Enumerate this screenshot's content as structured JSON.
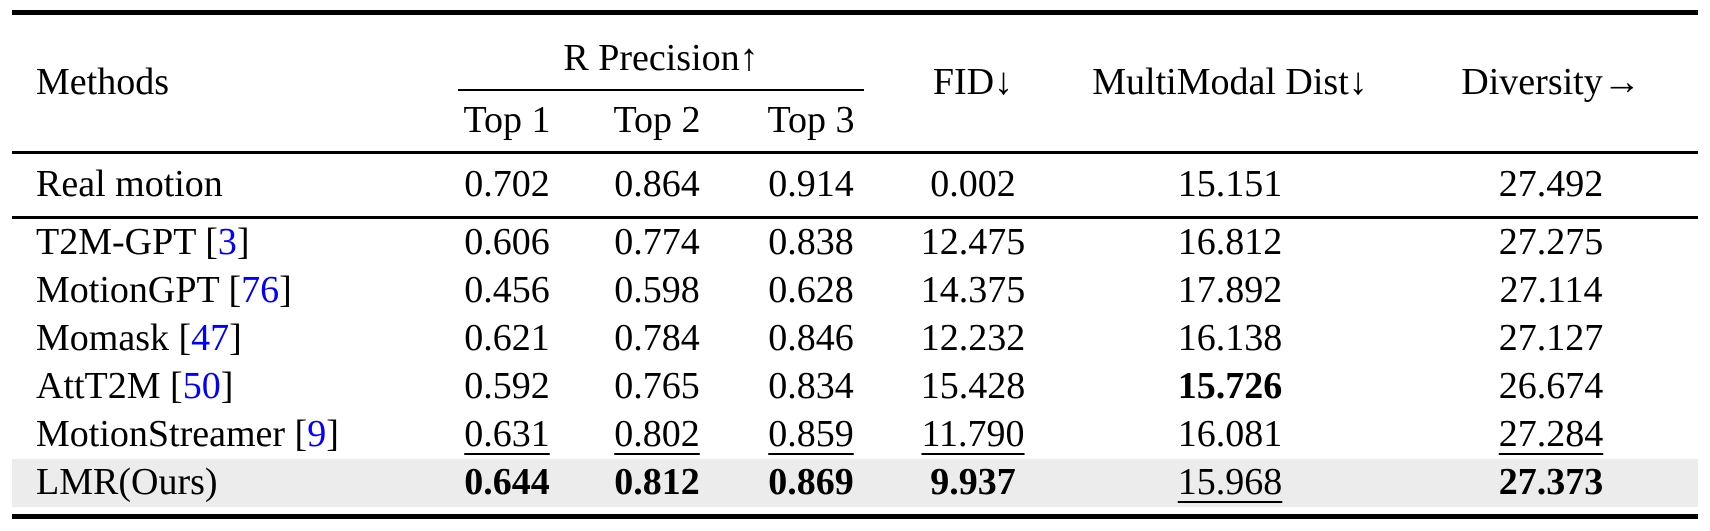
{
  "colors": {
    "citation": "#0000ff",
    "row_highlight": "#ececec",
    "rule": "#000000"
  },
  "table": {
    "header": {
      "methods": "Methods",
      "r_precision": "R Precision↑",
      "top1": "Top 1",
      "top2": "Top 2",
      "top3": "Top 3",
      "fid": "FID↓",
      "multimodal_dist": "MultiModal Dist↓",
      "diversity": "Diversity→"
    },
    "real_row": {
      "method": {
        "prefix": "Real motion",
        "cite": "",
        "suffix": ""
      },
      "values": [
        {
          "text": "0.702",
          "style": "normal"
        },
        {
          "text": "0.864",
          "style": "normal"
        },
        {
          "text": "0.914",
          "style": "normal"
        },
        {
          "text": "0.002",
          "style": "normal"
        },
        {
          "text": "15.151",
          "style": "normal"
        },
        {
          "text": "27.492",
          "style": "normal"
        }
      ]
    },
    "rows": [
      {
        "method": {
          "prefix": "T2M-GPT [",
          "cite": "3",
          "suffix": "]"
        },
        "values": [
          {
            "text": "0.606",
            "style": "normal"
          },
          {
            "text": "0.774",
            "style": "normal"
          },
          {
            "text": "0.838",
            "style": "normal"
          },
          {
            "text": "12.475",
            "style": "normal"
          },
          {
            "text": "16.812",
            "style": "normal"
          },
          {
            "text": "27.275",
            "style": "normal"
          }
        ]
      },
      {
        "method": {
          "prefix": "MotionGPT [",
          "cite": "76",
          "suffix": "]"
        },
        "values": [
          {
            "text": "0.456",
            "style": "normal"
          },
          {
            "text": "0.598",
            "style": "normal"
          },
          {
            "text": "0.628",
            "style": "normal"
          },
          {
            "text": "14.375",
            "style": "normal"
          },
          {
            "text": "17.892",
            "style": "normal"
          },
          {
            "text": "27.114",
            "style": "normal"
          }
        ]
      },
      {
        "method": {
          "prefix": "Momask [",
          "cite": "47",
          "suffix": "]"
        },
        "values": [
          {
            "text": "0.621",
            "style": "normal"
          },
          {
            "text": "0.784",
            "style": "normal"
          },
          {
            "text": "0.846",
            "style": "normal"
          },
          {
            "text": "12.232",
            "style": "normal"
          },
          {
            "text": "16.138",
            "style": "normal"
          },
          {
            "text": "27.127",
            "style": "normal"
          }
        ]
      },
      {
        "method": {
          "prefix": "AttT2M [",
          "cite": "50",
          "suffix": "]"
        },
        "values": [
          {
            "text": "0.592",
            "style": "normal"
          },
          {
            "text": "0.765",
            "style": "normal"
          },
          {
            "text": "0.834",
            "style": "normal"
          },
          {
            "text": "15.428",
            "style": "normal"
          },
          {
            "text": "15.726",
            "style": "bold"
          },
          {
            "text": "26.674",
            "style": "normal"
          }
        ]
      },
      {
        "method": {
          "prefix": "MotionStreamer [",
          "cite": "9",
          "suffix": "]"
        },
        "values": [
          {
            "text": "0.631",
            "style": "underline"
          },
          {
            "text": "0.802",
            "style": "underline"
          },
          {
            "text": "0.859",
            "style": "underline"
          },
          {
            "text": "11.790",
            "style": "underline"
          },
          {
            "text": "16.081",
            "style": "normal"
          },
          {
            "text": "27.284",
            "style": "underline"
          }
        ]
      },
      {
        "method": {
          "prefix": "LMR(Ours)",
          "cite": "",
          "suffix": ""
        },
        "values": [
          {
            "text": "0.644",
            "style": "bold"
          },
          {
            "text": "0.812",
            "style": "bold"
          },
          {
            "text": "0.869",
            "style": "bold"
          },
          {
            "text": "9.937",
            "style": "bold"
          },
          {
            "text": "15.968",
            "style": "underline"
          },
          {
            "text": "27.373",
            "style": "bold"
          }
        ]
      }
    ]
  }
}
